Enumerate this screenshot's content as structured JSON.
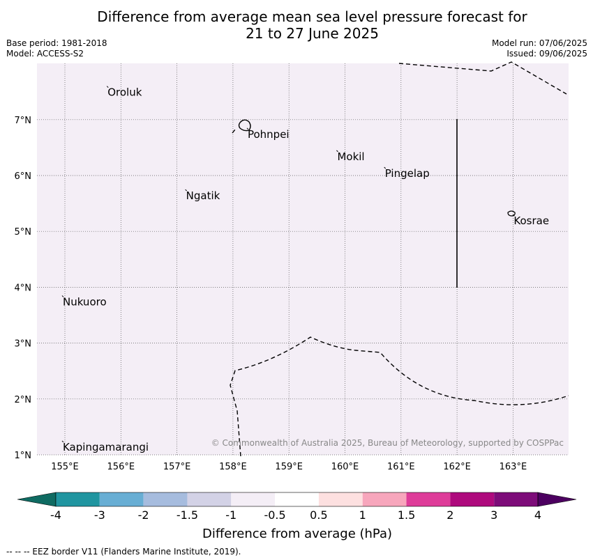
{
  "title": {
    "line1": "Difference from average mean sea level pressure forecast for",
    "line2": "21 to 27 June 2025"
  },
  "meta_left": {
    "base_period": "Base period: 1981-2018",
    "model": "Model: ACCESS-S2"
  },
  "meta_right": {
    "model_run": "Model run: 07/06/2025",
    "issued": "Issued: 09/06/2025"
  },
  "map": {
    "background_color": "#f4eef6",
    "lon_ticks": [
      "155°E",
      "156°E",
      "157°E",
      "158°E",
      "159°E",
      "160°E",
      "161°E",
      "162°E",
      "163°E"
    ],
    "lat_ticks": [
      "1°N",
      "2°N",
      "3°N",
      "4°N",
      "5°N",
      "6°N",
      "7°N"
    ],
    "places": [
      {
        "name": "Oroluk",
        "lon": 155.75,
        "lat": 7.6
      },
      {
        "name": "Pohnpei",
        "lon": 158.25,
        "lat": 6.85
      },
      {
        "name": "Mokil",
        "lon": 159.85,
        "lat": 6.45
      },
      {
        "name": "Pingelap",
        "lon": 160.7,
        "lat": 6.15
      },
      {
        "name": "Ngatik",
        "lon": 157.15,
        "lat": 5.75
      },
      {
        "name": "Kosrae",
        "lon": 163.0,
        "lat": 5.3
      },
      {
        "name": "Nukuoro",
        "lon": 154.95,
        "lat": 3.85
      },
      {
        "name": "Kapingamarangi",
        "lon": 154.95,
        "lat": 1.25
      }
    ],
    "copyright": "© Commonwealth of Australia 2025, Bureau of Meteorology, supported by COSPPac"
  },
  "colorbar": {
    "colors": [
      "#0f6b62",
      "#2095a0",
      "#68aed4",
      "#a6bcde",
      "#d3d2e6",
      "#f4eef6",
      "#ffffff",
      "#fde0e0",
      "#f7a6bc",
      "#de3c99",
      "#ae0a7d",
      "#7d0c79",
      "#4c0060"
    ],
    "labels": [
      "-4",
      "-3",
      "-2",
      "-1.5",
      "-1",
      "-0.5",
      "0.5",
      "1",
      "1.5",
      "2",
      "3",
      "4"
    ],
    "title": "Difference from average (hPa)"
  },
  "footer": "-- -- -- EEZ border V11 (Flanders Marine Institute, 2019)."
}
